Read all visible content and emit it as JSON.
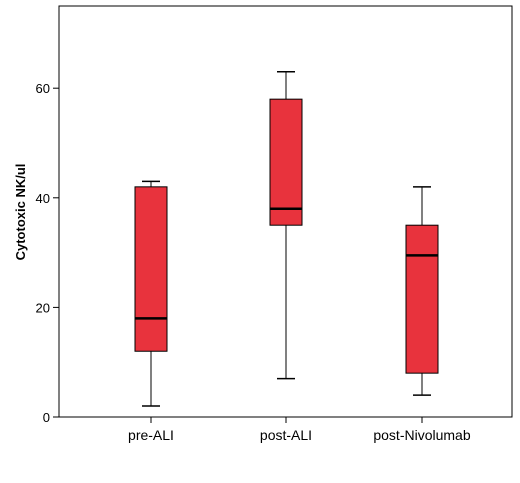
{
  "chart_data": {
    "type": "box",
    "ylabel": "Cytotoxic NK/ul",
    "ylim": [
      0,
      75
    ],
    "yticks": [
      0,
      20,
      40,
      60
    ],
    "categories": [
      "pre-ALI",
      "post-ALI",
      "post-Nivolumab"
    ],
    "boxes": [
      {
        "category": "pre-ALI",
        "min": 2,
        "q1": 12,
        "median": 18,
        "q3": 42,
        "max": 43
      },
      {
        "category": "post-ALI",
        "min": 7,
        "q1": 35,
        "median": 38,
        "q3": 58,
        "max": 63
      },
      {
        "category": "post-Nivolumab",
        "min": 4,
        "q1": 8,
        "median": 29.5,
        "q3": 35,
        "max": 42
      }
    ],
    "box_color": "#e8333d",
    "grid": false
  }
}
